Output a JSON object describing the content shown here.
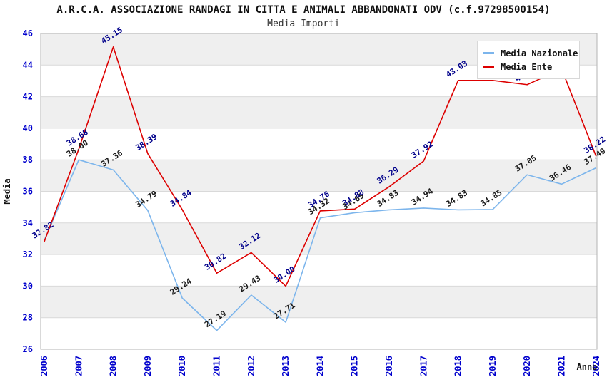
{
  "header": {
    "title": "A.R.C.A. ASSOCIAZIONE RANDAGI IN CITTA E ANIMALI ABBANDONATI ODV (c.f.97298500154)",
    "subtitle": "Media Importi"
  },
  "legend": {
    "items": [
      {
        "label": "Media Nazionale",
        "color": "#7cb5ec"
      },
      {
        "label": "Media Ente",
        "color": "#dd0000"
      }
    ]
  },
  "chart_data": {
    "type": "line",
    "title": "A.R.C.A. ASSOCIAZIONE RANDAGI IN CITTA E ANIMALI ABBANDONATI ODV (c.f.97298500154)",
    "subtitle": "Media Importi",
    "xlabel": "Anno",
    "ylabel": "Media",
    "ylim": [
      26,
      46
    ],
    "y_tick_step": 2,
    "grid": true,
    "legend_position": "top-right",
    "categories": [
      "2006",
      "2007",
      "2008",
      "2009",
      "2010",
      "2011",
      "2012",
      "2013",
      "2014",
      "2015",
      "2016",
      "2017",
      "2018",
      "2019",
      "2020",
      "2021",
      "2024"
    ],
    "series": [
      {
        "name": "Media Nazionale",
        "color": "#7cb5ec",
        "label_color": "#1a1a1a",
        "values": [
          32.9,
          38.0,
          37.36,
          34.79,
          29.24,
          27.19,
          29.43,
          27.71,
          34.32,
          34.65,
          34.83,
          34.94,
          34.83,
          34.85,
          37.05,
          36.46,
          37.49
        ],
        "labels": [
          "",
          "38.00",
          "37.36",
          "34.79",
          "29.24",
          "27.19",
          "29.43",
          "27.71",
          "34.32",
          "34.65",
          "34.83",
          "34.94",
          "34.83",
          "34.85",
          "37.05",
          "36.46",
          "37.49"
        ]
      },
      {
        "name": "Media Ente",
        "color": "#dd0000",
        "label_color": "#00008b",
        "values": [
          32.82,
          38.68,
          45.15,
          38.39,
          34.84,
          30.82,
          32.12,
          30.0,
          34.76,
          34.88,
          36.29,
          37.92,
          43.03,
          43.03,
          42.76,
          43.75,
          38.22
        ],
        "labels": [
          "32.82",
          "38.68",
          "45.15",
          "38.39",
          "34.84",
          "30.82",
          "32.12",
          "30.00",
          "34.76",
          "34.88",
          "36.29",
          "37.92",
          "43.03",
          "43.03",
          "42.76",
          "",
          "38.22"
        ]
      }
    ],
    "colors": {
      "tick_label": "#0000cd",
      "band_fill": "#efefef",
      "grid_line": "#d9d9d9",
      "plot_border": "#b3b3b3",
      "axis_title": "#111111"
    }
  }
}
